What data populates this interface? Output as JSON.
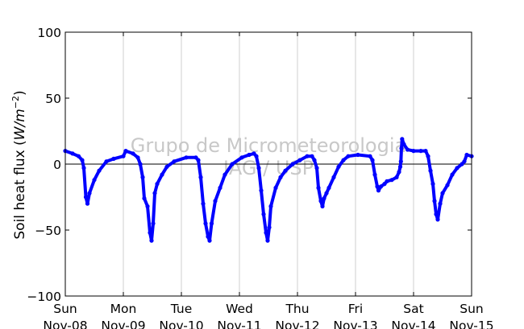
{
  "chart_data": {
    "type": "scatter",
    "title": "",
    "ylabel_prefix": "Soil heat flux (",
    "ylabel_units": "W/m",
    "ylabel_exp": "−2",
    "ylabel_suffix": ")",
    "ylim": [
      -100,
      100
    ],
    "yticks": [
      100,
      50,
      0,
      -50,
      -100
    ],
    "ytick_labels": [
      "100",
      "50",
      "0",
      "−50",
      "−100"
    ],
    "xlim": [
      "2015-11-08",
      "2015-11-15"
    ],
    "xticks": [
      {
        "day": "Sun",
        "date": "Nov-08"
      },
      {
        "day": "Mon",
        "date": "Nov-09"
      },
      {
        "day": "Tue",
        "date": "Nov-10"
      },
      {
        "day": "Wed",
        "date": "Nov-11"
      },
      {
        "day": "Thu",
        "date": "Nov-12"
      },
      {
        "day": "Fri",
        "date": "Nov-13"
      },
      {
        "day": "Sat",
        "date": "Nov-14"
      },
      {
        "day": "Sun",
        "date": "Nov-15"
      }
    ],
    "grid": "vertical",
    "zero_line": true,
    "series": [
      {
        "color": "#0000ff",
        "points": [
          [
            "2015-11-08 00:00",
            10
          ],
          [
            "2015-11-08 03:00",
            8
          ],
          [
            "2015-11-08 05:30",
            6
          ],
          [
            "2015-11-08 07:00",
            3
          ],
          [
            "2015-11-08 07:40",
            -3
          ],
          [
            "2015-11-08 08:30",
            -25
          ],
          [
            "2015-11-08 09:10",
            -30
          ],
          [
            "2015-11-08 10:00",
            -22
          ],
          [
            "2015-11-08 12:00",
            -12
          ],
          [
            "2015-11-08 14:00",
            -5
          ],
          [
            "2015-11-08 17:00",
            2
          ],
          [
            "2015-11-08 20:00",
            4
          ],
          [
            "2015-11-09 00:00",
            6
          ],
          [
            "2015-11-09 01:00",
            10
          ],
          [
            "2015-11-09 04:00",
            8
          ],
          [
            "2015-11-09 06:00",
            5
          ],
          [
            "2015-11-09 07:00",
            0
          ],
          [
            "2015-11-09 08:00",
            -10
          ],
          [
            "2015-11-09 08:40",
            -26
          ],
          [
            "2015-11-09 10:00",
            -32
          ],
          [
            "2015-11-09 11:00",
            -52
          ],
          [
            "2015-11-09 11:40",
            -58
          ],
          [
            "2015-11-09 12:20",
            -45
          ],
          [
            "2015-11-09 13:00",
            -22
          ],
          [
            "2015-11-09 14:00",
            -15
          ],
          [
            "2015-11-09 16:00",
            -8
          ],
          [
            "2015-11-09 18:00",
            -2
          ],
          [
            "2015-11-09 21:00",
            2
          ],
          [
            "2015-11-10 02:00",
            5
          ],
          [
            "2015-11-10 06:00",
            5
          ],
          [
            "2015-11-10 07:00",
            3
          ],
          [
            "2015-11-10 08:00",
            -10
          ],
          [
            "2015-11-10 09:00",
            -30
          ],
          [
            "2015-11-10 10:00",
            -45
          ],
          [
            "2015-11-10 11:00",
            -55
          ],
          [
            "2015-11-10 11:40",
            -58
          ],
          [
            "2015-11-10 12:30",
            -45
          ],
          [
            "2015-11-10 14:00",
            -28
          ],
          [
            "2015-11-10 16:00",
            -18
          ],
          [
            "2015-11-10 18:00",
            -8
          ],
          [
            "2015-11-10 21:00",
            0
          ],
          [
            "2015-11-11 01:00",
            5
          ],
          [
            "2015-11-11 04:00",
            7
          ],
          [
            "2015-11-11 06:00",
            8
          ],
          [
            "2015-11-11 07:00",
            6
          ],
          [
            "2015-11-11 08:00",
            -3
          ],
          [
            "2015-11-11 09:00",
            -20
          ],
          [
            "2015-11-11 10:00",
            -38
          ],
          [
            "2015-11-11 11:00",
            -52
          ],
          [
            "2015-11-11 11:40",
            -58
          ],
          [
            "2015-11-11 12:20",
            -48
          ],
          [
            "2015-11-11 13:00",
            -32
          ],
          [
            "2015-11-11 15:00",
            -18
          ],
          [
            "2015-11-11 17:00",
            -10
          ],
          [
            "2015-11-11 19:00",
            -5
          ],
          [
            "2015-11-11 22:00",
            0
          ],
          [
            "2015-11-12 01:00",
            3
          ],
          [
            "2015-11-12 04:00",
            6
          ],
          [
            "2015-11-12 06:00",
            6
          ],
          [
            "2015-11-12 07:00",
            3
          ],
          [
            "2015-11-12 08:00",
            -3
          ],
          [
            "2015-11-12 08:40",
            -18
          ],
          [
            "2015-11-12 09:40",
            -28
          ],
          [
            "2015-11-12 10:20",
            -32
          ],
          [
            "2015-11-12 11:00",
            -26
          ],
          [
            "2015-11-12 12:00",
            -22
          ],
          [
            "2015-11-12 13:00",
            -18
          ],
          [
            "2015-11-12 15:00",
            -10
          ],
          [
            "2015-11-12 17:00",
            -2
          ],
          [
            "2015-11-12 19:00",
            3
          ],
          [
            "2015-11-12 21:00",
            6
          ],
          [
            "2015-11-13 01:00",
            7
          ],
          [
            "2015-11-13 06:00",
            6
          ],
          [
            "2015-11-13 07:00",
            3
          ],
          [
            "2015-11-13 08:00",
            -8
          ],
          [
            "2015-11-13 09:00",
            -17
          ],
          [
            "2015-11-13 09:30",
            -20
          ],
          [
            "2015-11-13 10:30",
            -17
          ],
          [
            "2015-11-13 12:00",
            -15
          ],
          [
            "2015-11-13 13:00",
            -13
          ],
          [
            "2015-11-13 15:00",
            -12
          ],
          [
            "2015-11-13 17:00",
            -10
          ],
          [
            "2015-11-13 18:00",
            -6
          ],
          [
            "2015-11-13 18:30",
            -2
          ],
          [
            "2015-11-13 18:45",
            2
          ],
          [
            "2015-11-13 19:00",
            12
          ],
          [
            "2015-11-13 19:15",
            19
          ],
          [
            "2015-11-13 20:00",
            15
          ],
          [
            "2015-11-13 21:30",
            11
          ],
          [
            "2015-11-14 00:00",
            10
          ],
          [
            "2015-11-14 03:00",
            10
          ],
          [
            "2015-11-14 05:00",
            10
          ],
          [
            "2015-11-14 06:00",
            6
          ],
          [
            "2015-11-14 07:00",
            -5
          ],
          [
            "2015-11-14 08:00",
            -15
          ],
          [
            "2015-11-14 08:40",
            -28
          ],
          [
            "2015-11-14 09:20",
            -38
          ],
          [
            "2015-11-14 10:00",
            -42
          ],
          [
            "2015-11-14 11:00",
            -30
          ],
          [
            "2015-11-14 12:00",
            -22
          ],
          [
            "2015-11-14 14:00",
            -16
          ],
          [
            "2015-11-14 16:00",
            -8
          ],
          [
            "2015-11-14 18:00",
            -3
          ],
          [
            "2015-11-14 20:00",
            0
          ],
          [
            "2015-11-14 21:00",
            2
          ],
          [
            "2015-11-14 22:00",
            7
          ],
          [
            "2015-11-15 00:00",
            6
          ]
        ]
      }
    ]
  },
  "watermark": {
    "line1": "Grupo de Micrometeorologia",
    "line2": "IAG / USP"
  }
}
